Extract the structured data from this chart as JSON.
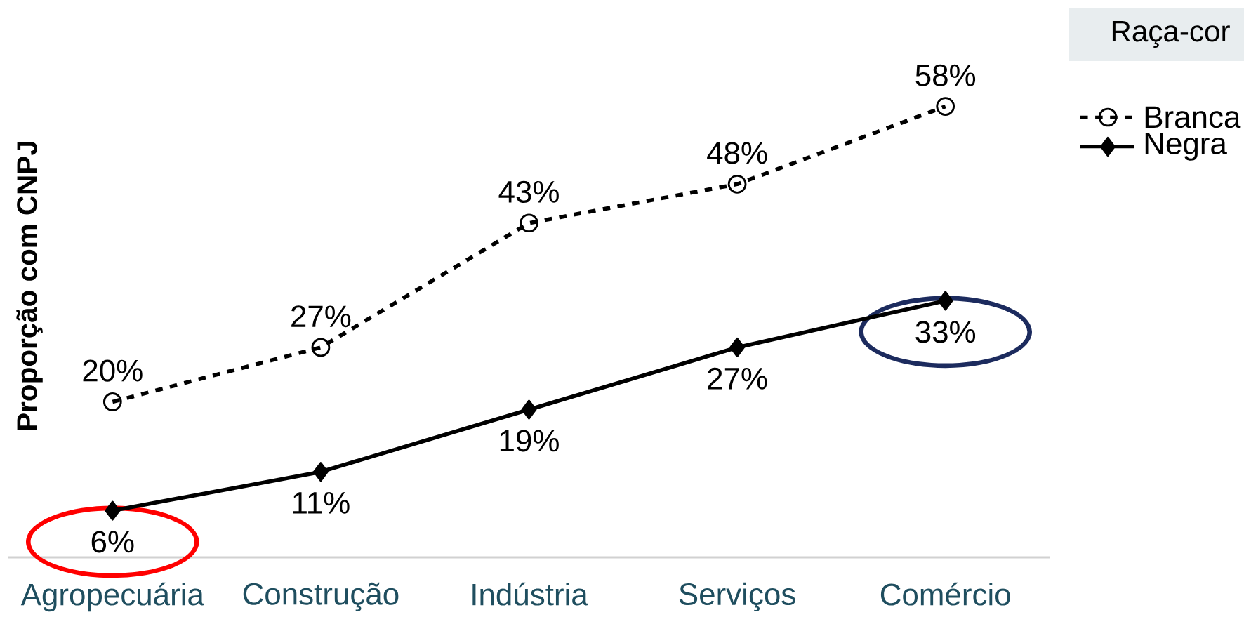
{
  "chart_data": {
    "type": "line",
    "ylabel": "Proporção com CNPJ",
    "legend_title": "Raça-cor",
    "legend": "right",
    "categories": [
      "Agropecuária",
      "Construção",
      "Indústria",
      "Serviços",
      "Comércio"
    ],
    "series": [
      {
        "name": "Branca",
        "color": "#000000",
        "marker": "circle",
        "line_style": "dashed",
        "values": [
          20,
          27,
          43,
          48,
          58
        ],
        "value_labels": [
          "20%",
          "27%",
          "43%",
          "48%",
          "58%"
        ]
      },
      {
        "name": "Negra",
        "color": "#000000",
        "marker": "diamond",
        "line_style": "solid",
        "values": [
          6,
          11,
          19,
          27,
          33
        ],
        "value_labels": [
          "6%",
          "11%",
          "19%",
          "27%",
          "33%"
        ]
      }
    ]
  }
}
